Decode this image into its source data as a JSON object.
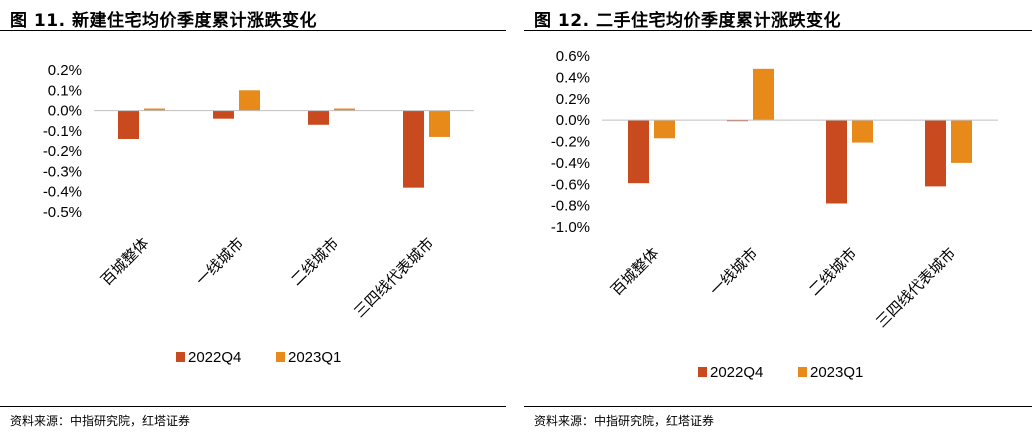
{
  "colors": {
    "series_2022Q4": "#C84A1E",
    "series_2023Q1": "#E88A1A",
    "axis": "#BFBFBF"
  },
  "left": {
    "title": "图 11. 新建住宅均价季度累计涨跌变化",
    "source": "资料来源：中指研究院，红塔证券"
  },
  "right": {
    "title": "图 12. 二手住宅均价季度累计涨跌变化",
    "source": "资料来源：中指研究院，红塔证券"
  },
  "chart_data": [
    {
      "type": "bar",
      "title": "图 11. 新建住宅均价季度累计涨跌变化",
      "categories": [
        "百城整体",
        "一线城市",
        "二线城市",
        "三四线代表城市"
      ],
      "series": [
        {
          "name": "2022Q4",
          "values": [
            -0.14,
            -0.04,
            -0.07,
            -0.38
          ]
        },
        {
          "name": "2023Q1",
          "values": [
            0.01,
            0.1,
            0.01,
            -0.13
          ]
        }
      ],
      "ylim": [
        -0.5,
        0.2
      ],
      "yticks": [
        0.2,
        0.1,
        0.0,
        -0.1,
        -0.2,
        -0.3,
        -0.4,
        -0.5
      ],
      "ytick_labels": [
        "0.2%",
        "0.1%",
        "0.0%",
        "-0.1%",
        "-0.2%",
        "-0.3%",
        "-0.4%",
        "-0.5%"
      ],
      "grid": false,
      "legend": "bottom"
    },
    {
      "type": "bar",
      "title": "图 12. 二手住宅均价季度累计涨跌变化",
      "categories": [
        "百城整体",
        "一线城市",
        "二线城市",
        "三四线代表城市"
      ],
      "series": [
        {
          "name": "2022Q4",
          "values": [
            -0.59,
            -0.01,
            -0.78,
            -0.62
          ]
        },
        {
          "name": "2023Q1",
          "values": [
            -0.17,
            0.48,
            -0.21,
            -0.4
          ]
        }
      ],
      "ylim": [
        -1.0,
        0.6
      ],
      "yticks": [
        0.6,
        0.4,
        0.2,
        0.0,
        -0.2,
        -0.4,
        -0.6,
        -0.8,
        -1.0
      ],
      "ytick_labels": [
        "0.6%",
        "0.4%",
        "0.2%",
        "0.0%",
        "-0.2%",
        "-0.4%",
        "-0.6%",
        "-0.8%",
        "-1.0%"
      ],
      "grid": false,
      "legend": "bottom"
    }
  ]
}
